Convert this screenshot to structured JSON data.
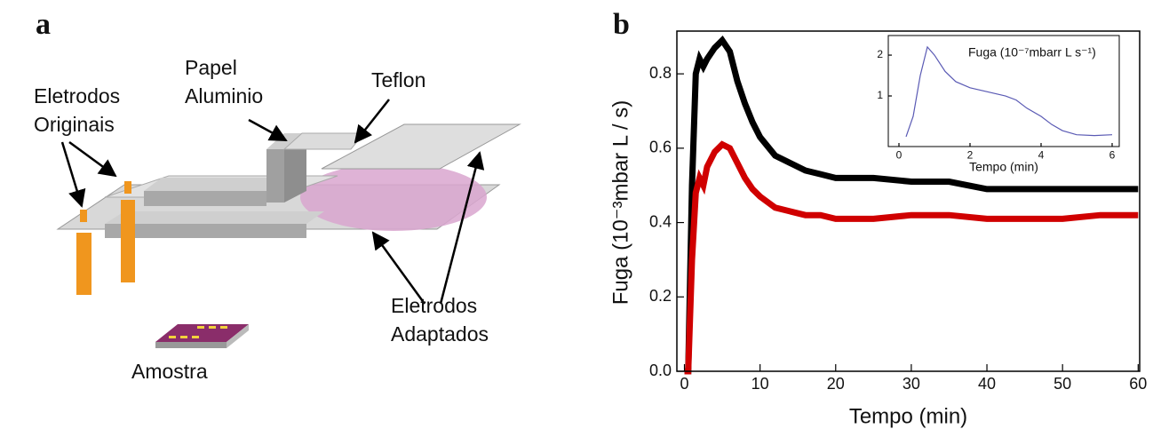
{
  "panel_a": {
    "panel_label": "a",
    "label_papel_aluminio": [
      "Papel",
      "Aluminio"
    ],
    "label_teflon": "Teflon",
    "label_eletrodos_originais": [
      "Eletrodos",
      "Originais"
    ],
    "label_eletrodos_adaptados": [
      "Eletrodos",
      "Adaptados"
    ],
    "label_amostra": "Amostra"
  },
  "chart_data": [
    {
      "type": "line",
      "panel_label": "b",
      "xlabel": "Tempo (min)",
      "ylabel": "Fuga (10⁻³mbar L / s)",
      "xlim": [
        -1,
        60.2
      ],
      "xticks": [
        0,
        10,
        20,
        30,
        40,
        50,
        60
      ],
      "ylim": [
        0,
        0.915
      ],
      "yticks": [
        {
          "value": 0,
          "label": "0.0"
        },
        0.2,
        0.4,
        0.6,
        0.8
      ],
      "x": [
        0,
        0.5,
        1,
        1.5,
        2,
        2.5,
        3,
        4,
        5,
        6,
        7,
        8,
        9,
        10,
        12,
        14,
        16,
        18,
        20,
        25,
        30,
        35,
        40,
        45,
        50,
        55,
        60
      ],
      "series": [
        {
          "color": "#000000",
          "values": [
            0,
            0,
            0.5,
            0.8,
            0.84,
            0.82,
            0.84,
            0.87,
            0.89,
            0.86,
            0.78,
            0.72,
            0.67,
            0.63,
            0.58,
            0.56,
            0.54,
            0.53,
            0.52,
            0.52,
            0.51,
            0.51,
            0.49,
            0.49,
            0.49,
            0.49,
            0.49
          ]
        },
        {
          "color": "#d00000",
          "values": [
            0,
            0,
            0.3,
            0.48,
            0.52,
            0.5,
            0.55,
            0.59,
            0.61,
            0.6,
            0.56,
            0.52,
            0.49,
            0.47,
            0.44,
            0.43,
            0.42,
            0.42,
            0.41,
            0.41,
            0.42,
            0.42,
            0.41,
            0.41,
            0.41,
            0.42,
            0.42
          ]
        }
      ]
    },
    {
      "type": "line",
      "title": "Fuga (10⁻⁷mbarr L s⁻¹)",
      "xlabel": "Tempo (min)",
      "xlim": [
        -0.3,
        6.2
      ],
      "xticks": [
        0,
        2,
        4,
        6
      ],
      "ylim": [
        -0.24,
        2.48
      ],
      "yticks": [
        1,
        2
      ],
      "x": [
        0.2,
        0.4,
        0.6,
        0.8,
        1,
        1.3,
        1.6,
        2,
        2.5,
        3,
        3.3,
        3.6,
        4,
        4.3,
        4.6,
        5,
        5.5,
        6
      ],
      "series": [
        {
          "color": "#5a5ab4",
          "values": [
            0,
            0.5,
            1.5,
            2.2,
            2.0,
            1.6,
            1.35,
            1.2,
            1.1,
            1.0,
            0.9,
            0.7,
            0.5,
            0.3,
            0.15,
            0.05,
            0.03,
            0.05
          ]
        }
      ]
    }
  ]
}
